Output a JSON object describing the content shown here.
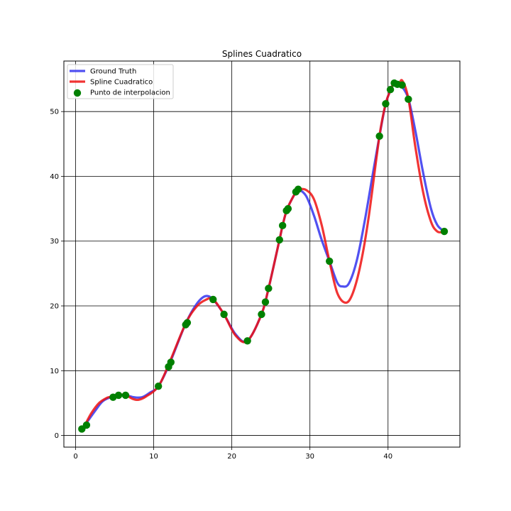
{
  "chart_data": {
    "type": "line",
    "title": "Splines Cuadratico",
    "xlabel": "",
    "ylabel": "",
    "xlim": [
      -1.5,
      49.2
    ],
    "ylim": [
      -1.8,
      57.8
    ],
    "x_ticks": [
      0,
      10,
      20,
      30,
      40
    ],
    "y_ticks": [
      0,
      10,
      20,
      30,
      40,
      50
    ],
    "grid": true,
    "legend_position": "top-left",
    "series": [
      {
        "name": "Ground Truth",
        "kind": "line",
        "color": "#3333ee",
        "points": [
          [
            1.2,
            1.6
          ],
          [
            2.5,
            3.8
          ],
          [
            3.5,
            5.3
          ],
          [
            4.7,
            6.0
          ],
          [
            5.6,
            6.3
          ],
          [
            6.5,
            6.2
          ],
          [
            7.5,
            5.9
          ],
          [
            8.5,
            5.9
          ],
          [
            9.5,
            6.6
          ],
          [
            10.6,
            7.6
          ],
          [
            12.0,
            11.0
          ],
          [
            14.1,
            17.3
          ],
          [
            15.5,
            20.3
          ],
          [
            16.6,
            21.5
          ],
          [
            17.6,
            21.0
          ],
          [
            19.0,
            18.7
          ],
          [
            20.5,
            15.6
          ],
          [
            22.0,
            14.6
          ],
          [
            23.8,
            18.7
          ],
          [
            24.7,
            22.7
          ],
          [
            26.1,
            30.2
          ],
          [
            26.5,
            32.4
          ],
          [
            27.1,
            35.0
          ],
          [
            28.2,
            37.6
          ],
          [
            28.5,
            38.0
          ],
          [
            29.5,
            37.0
          ],
          [
            30.5,
            34.0
          ],
          [
            31.5,
            30.2
          ],
          [
            32.5,
            26.9
          ],
          [
            33.5,
            23.6
          ],
          [
            34.2,
            23.0
          ],
          [
            35.0,
            23.5
          ],
          [
            36.0,
            27.0
          ],
          [
            37.0,
            33.0
          ],
          [
            38.0,
            40.0
          ],
          [
            38.9,
            46.2
          ],
          [
            39.7,
            51.2
          ],
          [
            40.4,
            53.5
          ],
          [
            40.8,
            54.5
          ],
          [
            41.3,
            54.3
          ],
          [
            41.8,
            53.8
          ],
          [
            42.6,
            52.0
          ],
          [
            43.5,
            47.0
          ],
          [
            44.5,
            40.5
          ],
          [
            45.5,
            35.0
          ],
          [
            46.3,
            32.5
          ],
          [
            47.2,
            31.5
          ]
        ]
      },
      {
        "name": "Spline Cuadratico",
        "kind": "line",
        "color": "#ee1111",
        "points": [
          [
            1.2,
            1.6
          ],
          [
            2.0,
            3.4
          ],
          [
            3.0,
            5.0
          ],
          [
            4.0,
            5.8
          ],
          [
            4.7,
            6.0
          ],
          [
            5.6,
            6.3
          ],
          [
            6.5,
            6.2
          ],
          [
            7.2,
            5.7
          ],
          [
            8.0,
            5.5
          ],
          [
            9.0,
            6.0
          ],
          [
            10.6,
            7.6
          ],
          [
            12.0,
            11.2
          ],
          [
            14.1,
            17.3
          ],
          [
            15.5,
            19.9
          ],
          [
            16.6,
            20.9
          ],
          [
            17.6,
            21.0
          ],
          [
            19.0,
            18.7
          ],
          [
            20.5,
            15.4
          ],
          [
            22.0,
            14.6
          ],
          [
            23.8,
            18.7
          ],
          [
            24.7,
            22.7
          ],
          [
            26.1,
            30.2
          ],
          [
            26.5,
            32.4
          ],
          [
            27.1,
            35.0
          ],
          [
            28.2,
            37.6
          ],
          [
            28.5,
            38.0
          ],
          [
            29.5,
            37.9
          ],
          [
            30.5,
            36.5
          ],
          [
            31.5,
            32.5
          ],
          [
            32.5,
            26.9
          ],
          [
            33.5,
            22.0
          ],
          [
            34.6,
            20.5
          ],
          [
            35.5,
            22.0
          ],
          [
            36.5,
            26.5
          ],
          [
            37.5,
            33.5
          ],
          [
            38.9,
            46.2
          ],
          [
            39.7,
            51.2
          ],
          [
            40.4,
            53.5
          ],
          [
            40.8,
            54.6
          ],
          [
            41.3,
            54.0
          ],
          [
            41.8,
            54.8
          ],
          [
            42.6,
            52.0
          ],
          [
            43.5,
            44.5
          ],
          [
            44.5,
            37.5
          ],
          [
            45.5,
            33.0
          ],
          [
            46.3,
            31.5
          ],
          [
            47.2,
            31.4
          ]
        ]
      },
      {
        "name": "Punto de interpolacion",
        "kind": "scatter",
        "color": "#008000",
        "points": [
          [
            0.8,
            1.0
          ],
          [
            1.4,
            1.6
          ],
          [
            4.8,
            5.9
          ],
          [
            5.5,
            6.2
          ],
          [
            6.4,
            6.2
          ],
          [
            10.6,
            7.6
          ],
          [
            11.9,
            10.6
          ],
          [
            12.2,
            11.3
          ],
          [
            14.1,
            17.1
          ],
          [
            14.3,
            17.4
          ],
          [
            17.6,
            21.0
          ],
          [
            19.0,
            18.7
          ],
          [
            22.0,
            14.6
          ],
          [
            23.8,
            18.7
          ],
          [
            24.3,
            20.6
          ],
          [
            24.7,
            22.7
          ],
          [
            26.1,
            30.2
          ],
          [
            26.5,
            32.4
          ],
          [
            27.0,
            34.7
          ],
          [
            27.2,
            35.0
          ],
          [
            28.2,
            37.6
          ],
          [
            28.5,
            38.0
          ],
          [
            32.5,
            26.9
          ],
          [
            38.9,
            46.2
          ],
          [
            39.7,
            51.2
          ],
          [
            40.3,
            53.4
          ],
          [
            40.8,
            54.4
          ],
          [
            41.2,
            54.2
          ],
          [
            41.8,
            54.1
          ],
          [
            42.6,
            51.9
          ],
          [
            47.2,
            31.5
          ]
        ]
      }
    ]
  }
}
